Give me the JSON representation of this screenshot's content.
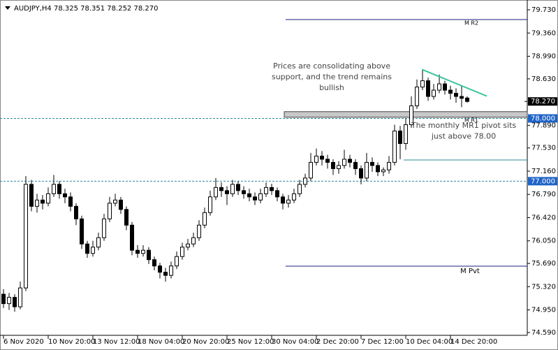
{
  "chart_data": {
    "type": "candlestick",
    "title": "AUDJPY,H4  78.325 78.351 78.252 78.270",
    "open": [
      75.2,
      75.05,
      75.15,
      75.0,
      75.3,
      76.95,
      76.6,
      76.7,
      76.65,
      76.8,
      76.95,
      76.8,
      76.75,
      76.6,
      76.4,
      76.0,
      75.85,
      75.95,
      76.1,
      76.4,
      76.65,
      76.7,
      76.55,
      76.3,
      75.9,
      75.85,
      75.9,
      75.75,
      75.65,
      75.55,
      75.5,
      75.65,
      75.8,
      75.95,
      76.0,
      76.1,
      76.3,
      76.5,
      76.75,
      76.9,
      76.85,
      76.8,
      76.95,
      76.85,
      76.8,
      76.75,
      76.7,
      76.8,
      76.9,
      76.85,
      76.75,
      76.65,
      76.7,
      76.8,
      76.95,
      77.05,
      77.3,
      77.4,
      77.35,
      77.3,
      77.2,
      77.25,
      77.35,
      77.3,
      77.2,
      77.05,
      77.3,
      77.25,
      77.15,
      77.18,
      77.3,
      77.8,
      77.6,
      77.9,
      78.2,
      78.5,
      78.6,
      78.35,
      78.45,
      78.55,
      78.45,
      78.4,
      78.35,
      78.325
    ],
    "high": [
      75.28,
      75.22,
      75.2,
      75.4,
      77.08,
      77.02,
      76.8,
      76.78,
      76.9,
      77.1,
      77.0,
      76.88,
      76.82,
      76.65,
      76.45,
      76.05,
      76.05,
      76.18,
      76.48,
      76.75,
      76.8,
      76.75,
      76.6,
      76.35,
      75.98,
      75.98,
      75.95,
      75.8,
      75.7,
      75.62,
      75.72,
      75.88,
      76.02,
      76.08,
      76.18,
      76.38,
      76.58,
      76.85,
      77.05,
      76.98,
      76.92,
      77.02,
      77.0,
      76.92,
      76.88,
      76.82,
      76.88,
      76.98,
      76.96,
      76.9,
      76.8,
      76.78,
      76.88,
      77.02,
      77.12,
      77.45,
      77.52,
      77.48,
      77.42,
      77.35,
      77.32,
      77.5,
      77.42,
      77.35,
      77.25,
      77.45,
      77.38,
      77.3,
      77.22,
      77.4,
      77.9,
      77.88,
      78.0,
      78.35,
      78.62,
      78.78,
      78.65,
      78.55,
      78.7,
      78.6,
      78.52,
      78.48,
      78.52,
      78.351
    ],
    "low": [
      74.98,
      74.95,
      74.92,
      74.96,
      75.25,
      76.52,
      76.5,
      76.55,
      76.6,
      76.75,
      76.72,
      76.65,
      76.52,
      76.3,
      75.92,
      75.78,
      75.8,
      75.9,
      76.05,
      76.35,
      76.6,
      76.48,
      76.22,
      75.82,
      75.78,
      75.8,
      75.68,
      75.58,
      75.45,
      75.4,
      75.45,
      75.6,
      75.75,
      75.9,
      75.95,
      76.05,
      76.25,
      76.45,
      76.7,
      76.75,
      76.62,
      76.75,
      76.78,
      76.72,
      76.68,
      76.62,
      76.65,
      76.75,
      76.78,
      76.68,
      76.55,
      76.58,
      76.65,
      76.75,
      76.9,
      77.0,
      77.25,
      77.25,
      77.2,
      77.1,
      77.12,
      77.2,
      77.22,
      77.1,
      76.95,
      77.0,
      77.15,
      77.08,
      77.08,
      77.12,
      77.25,
      77.35,
      77.5,
      77.85,
      78.15,
      78.45,
      78.28,
      78.3,
      78.4,
      78.38,
      78.3,
      78.25,
      78.18,
      78.252
    ],
    "close": [
      75.05,
      75.15,
      75.0,
      75.3,
      76.95,
      76.6,
      76.7,
      76.65,
      76.8,
      76.95,
      76.8,
      76.75,
      76.6,
      76.4,
      76.0,
      75.85,
      75.95,
      76.1,
      76.4,
      76.65,
      76.7,
      76.55,
      76.3,
      75.9,
      75.85,
      75.9,
      75.75,
      75.65,
      75.55,
      75.5,
      75.65,
      75.8,
      75.95,
      76.0,
      76.1,
      76.3,
      76.5,
      76.75,
      76.9,
      76.85,
      76.8,
      76.95,
      76.85,
      76.8,
      76.75,
      76.7,
      76.8,
      76.9,
      76.85,
      76.75,
      76.65,
      76.7,
      76.8,
      76.95,
      77.05,
      77.3,
      77.4,
      77.35,
      77.3,
      77.2,
      77.25,
      77.35,
      77.3,
      77.2,
      77.05,
      77.3,
      77.25,
      77.15,
      77.18,
      77.3,
      77.8,
      77.6,
      77.9,
      78.2,
      78.5,
      78.6,
      78.35,
      78.45,
      78.55,
      78.45,
      78.4,
      78.35,
      78.32,
      78.27
    ],
    "xlim": [
      -0.625,
      93.75
    ],
    "ylim": [
      74.545,
      79.886
    ],
    "xticks": [
      {
        "value": 0,
        "label": "6 Nov 2020"
      },
      {
        "value": 8,
        "label": "10 Nov 20:00"
      },
      {
        "value": 16,
        "label": "13 Nov 12:00"
      },
      {
        "value": 24,
        "label": "18 Nov 04:00"
      },
      {
        "value": 32,
        "label": "20 Nov 20:00"
      },
      {
        "value": 40,
        "label": "25 Nov 12:00"
      },
      {
        "value": 48,
        "label": "30 Nov 04:00"
      },
      {
        "value": 56,
        "label": "2 Dec 20:00"
      },
      {
        "value": 64,
        "label": "7 Dec 12:00"
      },
      {
        "value": 72,
        "label": "10 Dec 04:00"
      },
      {
        "value": 80,
        "label": "14 Dec 20:00"
      }
    ],
    "yticks": [
      {
        "value": 79.73,
        "label": "79.730"
      },
      {
        "value": 79.36,
        "label": "79.360"
      },
      {
        "value": 78.99,
        "label": "78.990"
      },
      {
        "value": 78.63,
        "label": "78.630"
      },
      {
        "value": 77.89,
        "label": "77.890"
      },
      {
        "value": 77.53,
        "label": "77.530"
      },
      {
        "value": 77.16,
        "label": "77.160"
      },
      {
        "value": 76.79,
        "label": "76.790"
      },
      {
        "value": 76.42,
        "label": "76.420"
      },
      {
        "value": 76.05,
        "label": "76.050"
      },
      {
        "value": 75.69,
        "label": "75.690"
      },
      {
        "value": 75.32,
        "label": "75.320"
      },
      {
        "value": 74.95,
        "label": "74.950"
      },
      {
        "value": 74.59,
        "label": "74.590"
      }
    ],
    "current_price": {
      "value": 78.27,
      "label": "78.270"
    },
    "dashed_levels": [
      {
        "value": 78.0,
        "label": "78.000"
      },
      {
        "value": 77.0,
        "label": "77.000"
      }
    ],
    "pivots": [
      {
        "name": "M R2",
        "value": 79.574
      },
      {
        "name": "M R1",
        "value": 78.03
      },
      {
        "name": "M Pvt",
        "value": 75.647
      }
    ],
    "support_line": 77.338,
    "trendline": {
      "x": [
        74.9,
        86.5
      ],
      "y": [
        78.78,
        78.355
      ],
      "color": "#3cc4a0"
    },
    "annotations": [
      {
        "lines": [
          "Prices are consolidating above",
          "support, and the trend remains",
          "bullish"
        ]
      },
      {
        "lines": [
          "The monthly MR1  pivot sits",
          "just above 78.00"
        ]
      }
    ]
  }
}
